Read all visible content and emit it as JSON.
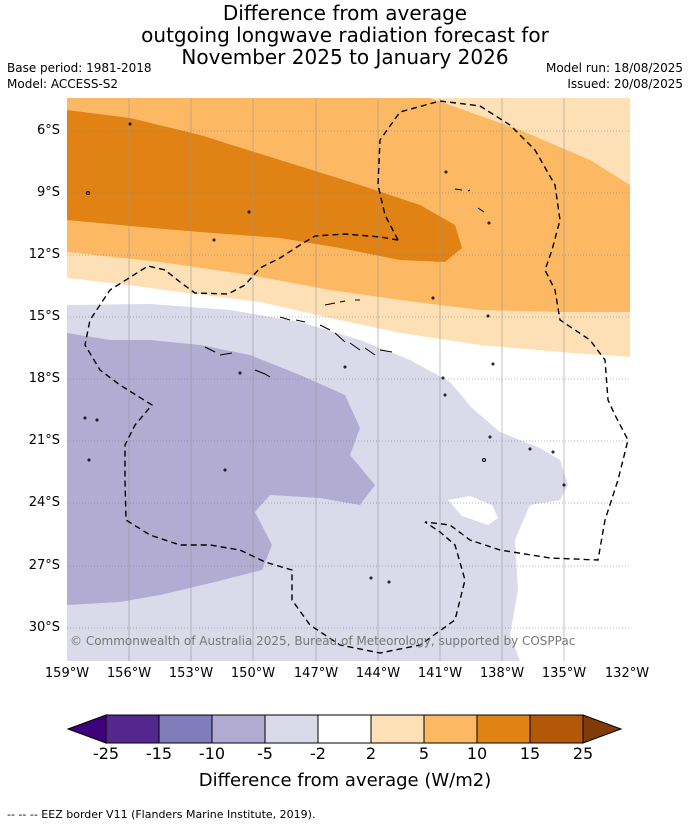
{
  "title": {
    "line1": "Difference from average",
    "line2": "outgoing longwave radiation forecast for",
    "line3": "November 2025 to January 2026"
  },
  "meta": {
    "base_period": "Base period: 1981-2018",
    "model": "Model: ACCESS-S2",
    "model_run": "Model run: 18/08/2025",
    "issued": "Issued: 20/08/2025"
  },
  "map": {
    "lat_labels": [
      "6°S",
      "9°S",
      "12°S",
      "15°S",
      "18°S",
      "21°S",
      "24°S",
      "27°S",
      "30°S"
    ],
    "lon_labels": [
      "159°W",
      "156°W",
      "153°W",
      "150°W",
      "147°W",
      "144°W",
      "141°W",
      "138°W",
      "135°W",
      "132°W"
    ],
    "copyright": "© Commonwealth of Australia 2025, Bureau of Meteorology, supported by COSPPac"
  },
  "colorbar": {
    "ticks": [
      "-25",
      "-15",
      "-10",
      "-5",
      "-2",
      "2",
      "5",
      "10",
      "15",
      "25"
    ],
    "label": "Difference from average (W/m2)",
    "colors": [
      "#3f007d",
      "#54278f",
      "#807dba",
      "#b2abd2",
      "#dadaeb",
      "#ffffff",
      "#fee0b6",
      "#fdb863",
      "#e08214",
      "#b35806",
      "#7f3b08"
    ]
  },
  "footer": "--  --  -- EEZ border V11 (Flanders Marine Institute, 2019)."
}
